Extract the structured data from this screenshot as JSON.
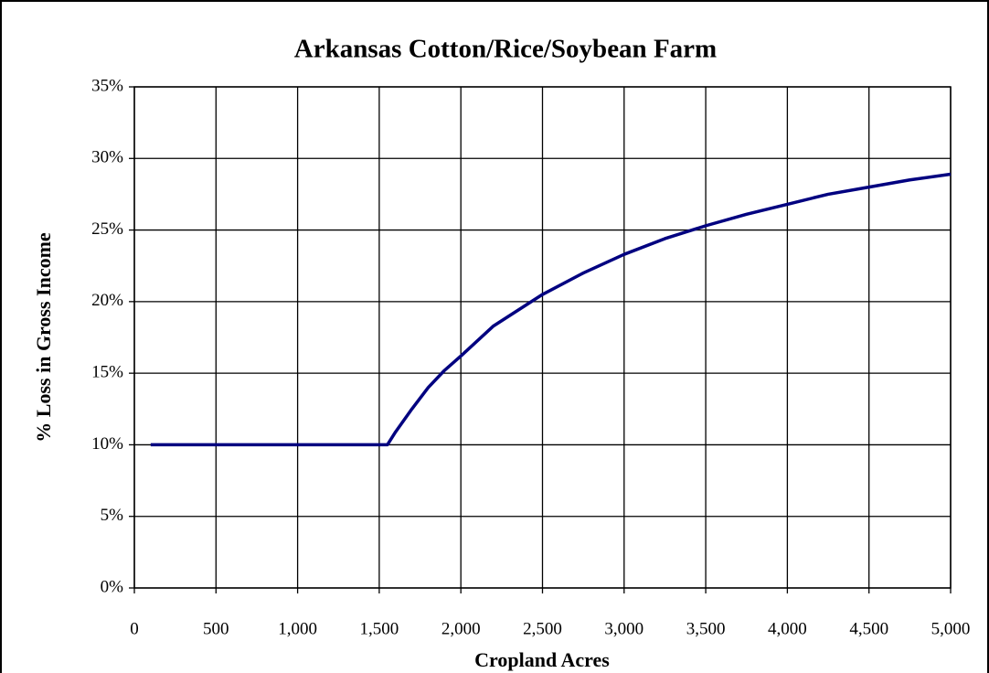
{
  "chart_data": {
    "type": "line",
    "title": "Arkansas Cotton/Rice/Soybean Farm",
    "x_label": "Cropland Acres",
    "y_label": "% Loss in Gross Income",
    "x": [
      100,
      500,
      1000,
      1500,
      1550,
      1600,
      1700,
      1800,
      1900,
      2000,
      2200,
      2500,
      2750,
      3000,
      3250,
      3500,
      3750,
      4000,
      4250,
      4500,
      4750,
      5000
    ],
    "series": [
      {
        "name": "% Loss in Gross Income",
        "color": "#000080",
        "values": [
          10,
          10,
          10,
          10,
          10,
          10.9,
          12.5,
          14.0,
          15.2,
          16.2,
          18.3,
          20.5,
          22.0,
          23.3,
          24.4,
          25.3,
          26.1,
          26.8,
          27.5,
          28.0,
          28.5,
          28.9
        ]
      }
    ],
    "xlim": [
      0,
      5000
    ],
    "xticks": [
      0,
      500,
      {
        "value": 1000,
        "label": "1,000"
      },
      {
        "value": 1500,
        "label": "1,500"
      },
      {
        "value": 2000,
        "label": "2,000"
      },
      {
        "value": 2500,
        "label": "2,500"
      },
      {
        "value": 3000,
        "label": "3,000"
      },
      {
        "value": 3500,
        "label": "3,500"
      },
      {
        "value": 4000,
        "label": "4,000"
      },
      {
        "value": 4500,
        "label": "4,500"
      },
      {
        "value": 5000,
        "label": "5,000"
      }
    ],
    "ylim": [
      0,
      35
    ],
    "yticks": [
      {
        "value": 0,
        "label": "0%"
      },
      {
        "value": 5,
        "label": "5%"
      },
      {
        "value": 10,
        "label": "10%"
      },
      {
        "value": 15,
        "label": "15%"
      },
      {
        "value": 20,
        "label": "20%"
      },
      {
        "value": 25,
        "label": "25%"
      },
      {
        "value": 30,
        "label": "30%"
      },
      {
        "value": 35,
        "label": "35%"
      }
    ],
    "grid": true
  }
}
